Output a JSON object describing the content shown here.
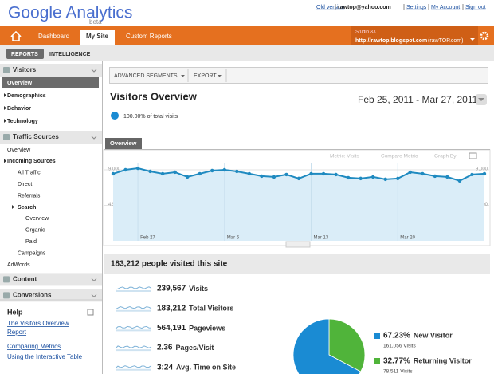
{
  "header": {
    "logo": "Google Analytics",
    "logo_sub": "beta",
    "links": [
      "Old version",
      "rawtop@yahoo.com",
      "Settings",
      "My Account",
      "Sign out"
    ]
  },
  "nav": {
    "tabs": [
      "Dashboard",
      "My Site",
      "Custom Reports"
    ],
    "account": "Studio 3X",
    "site_url": "http://rawtop.blogspot.com",
    "site_name": "(rawTOP.com)"
  },
  "subnav": [
    "REPORTS",
    "INTELLIGENCE"
  ],
  "sidebar": {
    "groups": [
      {
        "title": "Visitors",
        "items": [
          {
            "label": "Overview"
          },
          {
            "label": "Demographics"
          },
          {
            "label": "Behavior"
          },
          {
            "label": "Technology"
          }
        ]
      },
      {
        "title": "Traffic Sources",
        "items": [
          {
            "label": "Overview"
          },
          {
            "label": "Incoming Sources",
            "children": [
              {
                "label": "All Traffic"
              },
              {
                "label": "Direct"
              },
              {
                "label": "Referrals"
              },
              {
                "label": "Search",
                "children": [
                  {
                    "label": "Overview"
                  },
                  {
                    "label": "Organic"
                  },
                  {
                    "label": "Paid"
                  }
                ]
              },
              {
                "label": "Campaigns"
              }
            ]
          },
          {
            "label": "AdWords"
          }
        ]
      },
      {
        "title": "Content",
        "items": []
      },
      {
        "title": "Conversions",
        "items": []
      }
    ]
  },
  "help": {
    "title": "Help",
    "links": [
      "The Visitors Overview Report",
      "Comparing Metrics",
      "Using the Interactive Table"
    ]
  },
  "toolbar": [
    "ADVANCED SEGMENTS",
    "EXPORT"
  ],
  "report": {
    "title": "Visitors Overview",
    "date_range": "Feb 25, 2011 - Mar 27, 2011",
    "segment": "100.00% of total visits",
    "tab": "Overview",
    "controls": [
      "Metric: Visits",
      "Compare Metric",
      "Graph By:"
    ]
  },
  "chart": {
    "type": "line",
    "color": "#1f8ac0",
    "categories": [
      null,
      null,
      "Feb 27",
      null,
      null,
      null,
      null,
      null,
      null,
      "Mar 6",
      null,
      null,
      null,
      null,
      null,
      null,
      "Mar 13",
      null,
      null,
      null,
      null,
      null,
      null,
      "Mar 20",
      null,
      null,
      null,
      null,
      null,
      null,
      null
    ],
    "values": [
      8500,
      9000,
      9200,
      8800,
      8500,
      8700,
      8100,
      8500,
      8900,
      9000,
      8800,
      8500,
      8200,
      8100,
      8400,
      7900,
      8500,
      8500,
      8400,
      8000,
      7900,
      8100,
      7800,
      7900,
      8700,
      8500,
      8200,
      8100,
      7600,
      8400,
      8500
    ],
    "ylim": [
      0,
      9000
    ],
    "yticks": [
      {
        "value": 9000,
        "label": "9,000"
      },
      {
        "value": 4500,
        "label": "4,500"
      }
    ],
    "grid": true
  },
  "summary": {
    "headline": "183,212 people visited this site",
    "metrics": [
      {
        "value": "239,567",
        "label": "Visits"
      },
      {
        "value": "183,212",
        "label": "Total Visitors"
      },
      {
        "value": "564,191",
        "label": "Pageviews"
      },
      {
        "value": "2.36",
        "label": "Pages/Visit"
      },
      {
        "value": "3:24",
        "label": "Avg. Time on Site"
      }
    ]
  },
  "pie": {
    "type": "pie",
    "categories": [
      "New Visitor",
      "Returning Visitor"
    ],
    "values": [
      67.23,
      32.77
    ],
    "value_labels": [
      "67.23%",
      "32.77%"
    ],
    "details": [
      "161,056 Visits",
      "78,511 Visits"
    ],
    "colors": [
      "#1a8bd3",
      "#50b43a"
    ]
  }
}
